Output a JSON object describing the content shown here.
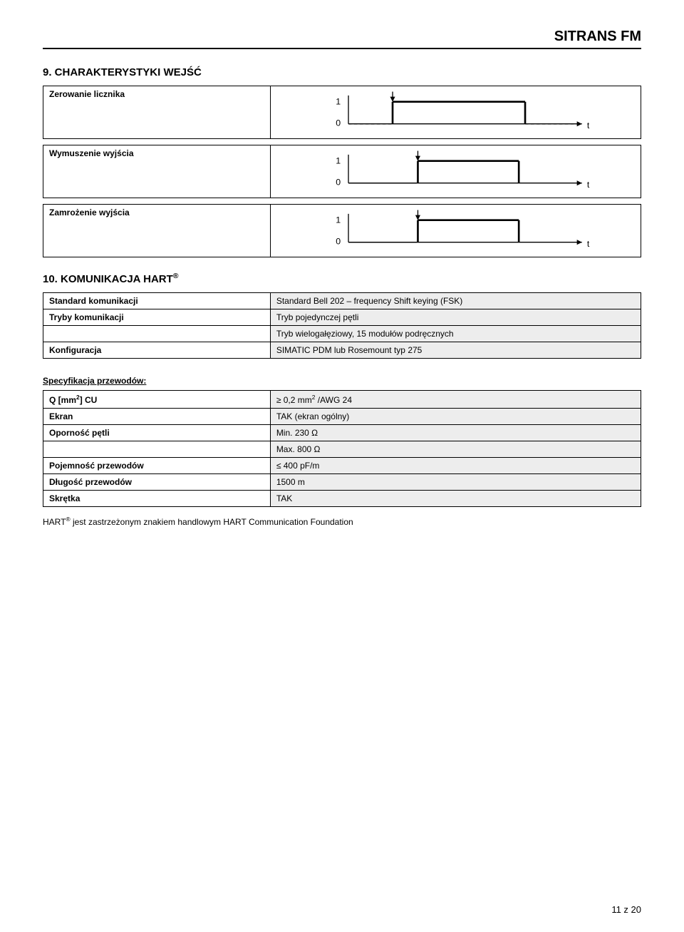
{
  "header": {
    "brand": "SITRANS FM"
  },
  "section9": {
    "heading": "9. CHARAKTERYSTYKI WEJŚĆ",
    "rows": [
      {
        "label": "Zerowanie licznika"
      },
      {
        "label": "Wymuszenie wyjścia"
      },
      {
        "label": "Zamrożenie wyjścia"
      }
    ]
  },
  "diagram": {
    "arrow_color": "#000000",
    "pulse_color": "#000000",
    "dash_color": "#000000",
    "background": "#ededed",
    "y_labels": [
      "1",
      "0"
    ],
    "x_label": "t",
    "line_width": 2
  },
  "section10": {
    "heading": "10. KOMUNIKACJA HART",
    "sup_heading": "®",
    "table": [
      {
        "label": "Standard komunikacji",
        "value": "Standard Bell 202 – frequency Shift keying (FSK)"
      },
      {
        "label": "Tryby komunikacji",
        "value": "Tryb pojedynczej pętli"
      },
      {
        "label": "",
        "value": "Tryb wielogałęziowy, 15 modułów podręcznych"
      },
      {
        "label": "Konfiguracja",
        "value": "SIMATIC PDM lub Rosemount typ 275"
      }
    ],
    "spec_heading": "Specyfikacja przewodów:",
    "spec_table": [
      {
        "label_html": "Q [mm<sup>2</sup>] CU",
        "value_html": "≥ 0,2 mm<sup>2</sup> /AWG 24"
      },
      {
        "label_html": "Ekran",
        "value_html": "TAK (ekran ogólny)"
      },
      {
        "label_html": "Oporność pętli",
        "value_html": "Min. 230 Ω"
      },
      {
        "label_html": "",
        "value_html": "Max. 800 Ω"
      },
      {
        "label_html": "Pojemność przewodów",
        "value_html": "≤ 400 pF/m"
      },
      {
        "label_html": "Długość przewodów",
        "value_html": "1500 m"
      },
      {
        "label_html": "Skrętka",
        "value_html": "TAK"
      }
    ],
    "footnote_prefix": "HART",
    "footnote_sup": "®",
    "footnote_rest": " jest zastrzeżonym znakiem handlowym HART Communication Foundation"
  },
  "footer": {
    "page": "11 z 20"
  }
}
